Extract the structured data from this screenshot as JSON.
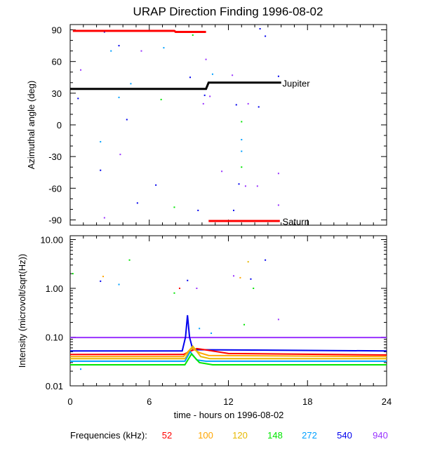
{
  "title": "URAP Direction Finding  1996-08-02",
  "xlabel": "time - hours on 1996-08-02",
  "freq_legend_label": "Frequencies (kHz):",
  "frequencies": [
    {
      "label": "52",
      "color": "#ff0000"
    },
    {
      "label": "100",
      "color": "#ffa500"
    },
    {
      "label": "120",
      "color": "#e6b800"
    },
    {
      "label": "148",
      "color": "#00e600"
    },
    {
      "label": "272",
      "color": "#00a0ff"
    },
    {
      "label": "540",
      "color": "#0000ee"
    },
    {
      "label": "940",
      "color": "#9933ff"
    }
  ],
  "chart_data": [
    {
      "type": "line",
      "title": "URAP Direction Finding  1996-08-02",
      "ylabel": "Azimuthal angle (deg)",
      "xlabel": "",
      "xlim": [
        0,
        24
      ],
      "ylim": [
        -95,
        95
      ],
      "yticks": [
        -90,
        -60,
        -30,
        0,
        30,
        60,
        90
      ],
      "xticks": [
        0,
        6,
        12,
        18,
        24
      ],
      "series": [
        {
          "name": "Jupiter",
          "color": "#000000",
          "x": [
            0,
            10.3,
            10.5,
            16
          ],
          "y": [
            34,
            34,
            40,
            40
          ]
        },
        {
          "name": "Saturn",
          "color": "#ff0000",
          "x": [
            10.5,
            15.9
          ],
          "y": [
            -91,
            -91
          ]
        },
        {
          "name": "",
          "color": "#ff0000",
          "x": [
            0.2,
            7.9,
            8.0,
            10.3
          ],
          "y": [
            89,
            89,
            88,
            88
          ]
        }
      ],
      "scatter": [
        {
          "x": 0.8,
          "y": 52,
          "color": "#9933ff"
        },
        {
          "x": 2.6,
          "y": 88,
          "color": "#0000ee"
        },
        {
          "x": 3.1,
          "y": 70,
          "color": "#00a0ff"
        },
        {
          "x": 3.7,
          "y": 75,
          "color": "#0000ee"
        },
        {
          "x": 5.4,
          "y": 70,
          "color": "#9933ff"
        },
        {
          "x": 7.1,
          "y": 73,
          "color": "#00a0ff"
        },
        {
          "x": 9.3,
          "y": 85,
          "color": "#00e600"
        },
        {
          "x": 10.3,
          "y": 62,
          "color": "#9933ff"
        },
        {
          "x": 9.1,
          "y": 45,
          "color": "#0000ee"
        },
        {
          "x": 10.8,
          "y": 48,
          "color": "#00a0ff"
        },
        {
          "x": 12.3,
          "y": 47,
          "color": "#9933ff"
        },
        {
          "x": 4.6,
          "y": 39,
          "color": "#00a0ff"
        },
        {
          "x": 0.6,
          "y": 25,
          "color": "#0000ee"
        },
        {
          "x": 3.7,
          "y": 26,
          "color": "#00a0ff"
        },
        {
          "x": 6.9,
          "y": 24,
          "color": "#00e600"
        },
        {
          "x": 10.2,
          "y": 28,
          "color": "#0000ee"
        },
        {
          "x": 10.6,
          "y": 27,
          "color": "#9933ff"
        },
        {
          "x": 10.1,
          "y": 20,
          "color": "#9933ff"
        },
        {
          "x": 12.6,
          "y": 19,
          "color": "#0000ee"
        },
        {
          "x": 13.5,
          "y": 20,
          "color": "#9933ff"
        },
        {
          "x": 14.3,
          "y": 17,
          "color": "#0000ee"
        },
        {
          "x": 15.8,
          "y": 46,
          "color": "#0000ee"
        },
        {
          "x": 14.8,
          "y": 84,
          "color": "#0000ee"
        },
        {
          "x": 14.4,
          "y": 91,
          "color": "#0000ee"
        },
        {
          "x": 4.3,
          "y": 5,
          "color": "#0000ee"
        },
        {
          "x": 13.0,
          "y": 3,
          "color": "#00e600"
        },
        {
          "x": 2.3,
          "y": -16,
          "color": "#00a0ff"
        },
        {
          "x": 13.0,
          "y": -14,
          "color": "#00a0ff"
        },
        {
          "x": 3.8,
          "y": -28,
          "color": "#9933ff"
        },
        {
          "x": 13.0,
          "y": -25,
          "color": "#00a0ff"
        },
        {
          "x": 2.3,
          "y": -43,
          "color": "#0000ee"
        },
        {
          "x": 11.5,
          "y": -44,
          "color": "#9933ff"
        },
        {
          "x": 13.0,
          "y": -40,
          "color": "#00e600"
        },
        {
          "x": 15.8,
          "y": -46,
          "color": "#9933ff"
        },
        {
          "x": 12.8,
          "y": -56,
          "color": "#0000ee"
        },
        {
          "x": 6.5,
          "y": -57,
          "color": "#0000ee"
        },
        {
          "x": 13.3,
          "y": -58,
          "color": "#9933ff"
        },
        {
          "x": 14.2,
          "y": -58,
          "color": "#9933ff"
        },
        {
          "x": 5.1,
          "y": -74,
          "color": "#0000ee"
        },
        {
          "x": 7.9,
          "y": -78,
          "color": "#00e600"
        },
        {
          "x": 9.7,
          "y": -81,
          "color": "#0000ee"
        },
        {
          "x": 12.4,
          "y": -81,
          "color": "#0000ee"
        },
        {
          "x": 15.8,
          "y": -76,
          "color": "#9933ff"
        },
        {
          "x": 2.6,
          "y": -88,
          "color": "#9933ff"
        }
      ],
      "annotations": [
        {
          "text": "Jupiter",
          "x": 16.1,
          "y": 39
        },
        {
          "text": "Saturn",
          "x": 16.1,
          "y": -92
        }
      ]
    },
    {
      "type": "line",
      "ylabel": "Intensity (microvolt/sqrt(Hz))",
      "xlabel": "time - hours on 1996-08-02",
      "xlim": [
        0,
        24
      ],
      "ylim": [
        0.01,
        12
      ],
      "yscale": "log",
      "yticks": [
        0.01,
        0.1,
        1.0,
        10.0
      ],
      "ytick_labels": [
        "0.01",
        "0.10",
        "1.00",
        "10.00"
      ],
      "xticks": [
        0,
        6,
        12,
        18,
        24
      ],
      "series": [
        {
          "name": "940",
          "color": "#9933ff",
          "x": [
            0,
            24
          ],
          "y": [
            0.098,
            0.098
          ]
        },
        {
          "name": "540",
          "color": "#0000ee",
          "x": [
            0,
            8.5,
            8.75,
            8.9,
            9.05,
            9.3,
            24
          ],
          "y": [
            0.052,
            0.052,
            0.1,
            0.28,
            0.1,
            0.055,
            0.052
          ]
        },
        {
          "name": "52",
          "color": "#ff0000",
          "x": [
            0,
            8.6,
            9.0,
            9.6,
            10.2,
            12,
            24
          ],
          "y": [
            0.044,
            0.044,
            0.05,
            0.058,
            0.055,
            0.046,
            0.043
          ]
        },
        {
          "name": "100",
          "color": "#ffa500",
          "x": [
            0,
            8.6,
            9.2,
            9.8,
            10.5,
            24
          ],
          "y": [
            0.04,
            0.04,
            0.06,
            0.048,
            0.042,
            0.04
          ]
        },
        {
          "name": "120",
          "color": "#e6b800",
          "x": [
            0,
            8.7,
            9.3,
            9.9,
            10.6,
            24
          ],
          "y": [
            0.036,
            0.036,
            0.065,
            0.04,
            0.036,
            0.036
          ]
        },
        {
          "name": "272",
          "color": "#00a0ff",
          "x": [
            0,
            8.7,
            9.1,
            9.6,
            10.3,
            24
          ],
          "y": [
            0.032,
            0.032,
            0.05,
            0.034,
            0.032,
            0.032
          ]
        },
        {
          "name": "148",
          "color": "#00e600",
          "x": [
            0,
            8.7,
            9.2,
            9.8,
            10.8,
            24
          ],
          "y": [
            0.027,
            0.027,
            0.045,
            0.03,
            0.027,
            0.027
          ]
        }
      ],
      "scatter": [
        {
          "x": 0.2,
          "y": 2.0,
          "color": "#00e600"
        },
        {
          "x": 2.3,
          "y": 1.4,
          "color": "#0000ee"
        },
        {
          "x": 2.5,
          "y": 1.75,
          "color": "#ffa500"
        },
        {
          "x": 3.7,
          "y": 1.2,
          "color": "#00a0ff"
        },
        {
          "x": 4.5,
          "y": 3.8,
          "color": "#00e600"
        },
        {
          "x": 7.9,
          "y": 0.8,
          "color": "#00e600"
        },
        {
          "x": 8.3,
          "y": 1.0,
          "color": "#ff0000"
        },
        {
          "x": 8.9,
          "y": 1.45,
          "color": "#0000ee"
        },
        {
          "x": 9.6,
          "y": 1.0,
          "color": "#9933ff"
        },
        {
          "x": 12.4,
          "y": 1.8,
          "color": "#9933ff"
        },
        {
          "x": 12.9,
          "y": 1.65,
          "color": "#ffa500"
        },
        {
          "x": 13.2,
          "y": 0.18,
          "color": "#00e600"
        },
        {
          "x": 13.7,
          "y": 1.55,
          "color": "#0000ee"
        },
        {
          "x": 13.5,
          "y": 3.5,
          "color": "#e6b800"
        },
        {
          "x": 13.9,
          "y": 1.0,
          "color": "#00e600"
        },
        {
          "x": 14.8,
          "y": 3.8,
          "color": "#0000ee"
        },
        {
          "x": 15.8,
          "y": 0.23,
          "color": "#9933ff"
        },
        {
          "x": 9.8,
          "y": 0.15,
          "color": "#00a0ff"
        },
        {
          "x": 10.7,
          "y": 0.12,
          "color": "#00a0ff"
        },
        {
          "x": 0.8,
          "y": 0.022,
          "color": "#00a0ff"
        }
      ]
    }
  ]
}
